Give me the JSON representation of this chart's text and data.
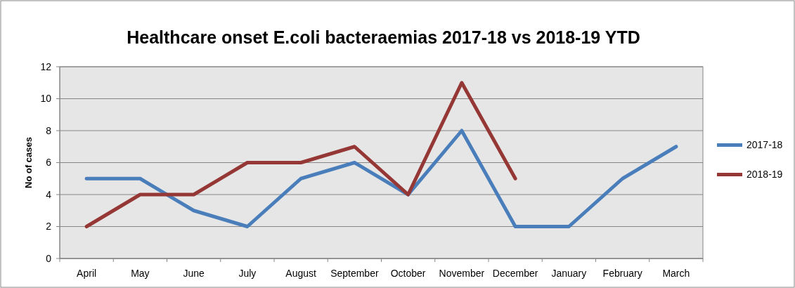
{
  "chart_data": {
    "type": "line",
    "title": "Healthcare onset E.coli bacteraemias 2017-18 vs 2018-19 YTD",
    "ylabel": "No of cases",
    "categories": [
      "April",
      "May",
      "June",
      "July",
      "August",
      "September",
      "October",
      "November",
      "December",
      "January",
      "February",
      "March"
    ],
    "series": [
      {
        "name": "2017-18",
        "color": "#4a7ebb",
        "values": [
          5,
          5,
          3,
          2,
          5,
          6,
          4,
          8,
          2,
          2,
          5,
          7
        ]
      },
      {
        "name": "2018-19",
        "color": "#953735",
        "values": [
          2,
          4,
          4,
          6,
          6,
          7,
          4,
          11,
          5,
          null,
          null,
          null
        ]
      }
    ],
    "ylim": [
      0,
      12
    ],
    "yticks": [
      0,
      2,
      4,
      6,
      8,
      10,
      12
    ],
    "grid": "y",
    "legend": "right",
    "marker": "none",
    "line_style": "solid"
  }
}
